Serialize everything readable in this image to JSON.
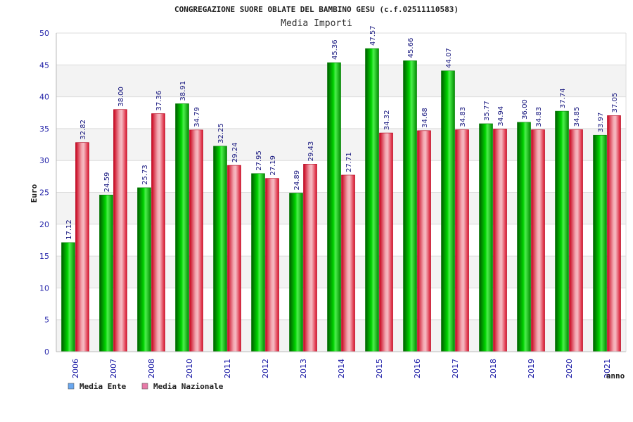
{
  "chart_data": {
    "type": "bar",
    "title": "CONGREGAZIONE SUORE OBLATE DEL BAMBINO GESU (c.f.02511110583)",
    "subtitle": "Media Importi",
    "xlabel": "anno",
    "ylabel": "Euro",
    "ylim": [
      0,
      50
    ],
    "yticks": [
      0,
      5,
      10,
      15,
      20,
      25,
      30,
      35,
      40,
      45,
      50
    ],
    "grid": true,
    "legend_position": "bottom-left",
    "categories": [
      "2006",
      "2007",
      "2008",
      "2010",
      "2011",
      "2012",
      "2013",
      "2014",
      "2015",
      "2016",
      "2017",
      "2018",
      "2019",
      "2020",
      "2021"
    ],
    "series": [
      {
        "name": "Media Ente",
        "color": "#00b400",
        "legend_color": "#6aa8f0",
        "values": [
          17.12,
          24.59,
          25.73,
          38.91,
          32.25,
          27.95,
          24.89,
          45.36,
          47.57,
          45.66,
          44.07,
          35.77,
          36.0,
          37.74,
          33.97
        ],
        "labels": [
          "17.12",
          "24.59",
          "25.73",
          "38.91",
          "32.25",
          "27.95",
          "24.89",
          "45.36",
          "47.57",
          "45.66",
          "44.07",
          "35.77",
          "36.00",
          "37.74",
          "33.97"
        ]
      },
      {
        "name": "Media Nazionale",
        "color": "#e8202e",
        "legend_color": "#e87aa8",
        "values": [
          32.82,
          38.0,
          37.36,
          34.79,
          29.24,
          27.19,
          29.43,
          27.71,
          34.32,
          34.68,
          34.83,
          34.94,
          34.83,
          34.85,
          37.05
        ],
        "labels": [
          "32.82",
          "38.00",
          "37.36",
          "34.79",
          "29.24",
          "27.19",
          "29.43",
          "27.71",
          "34.32",
          "34.68",
          "34.83",
          "34.94",
          "34.83",
          "34.85",
          "37.05"
        ]
      }
    ]
  }
}
